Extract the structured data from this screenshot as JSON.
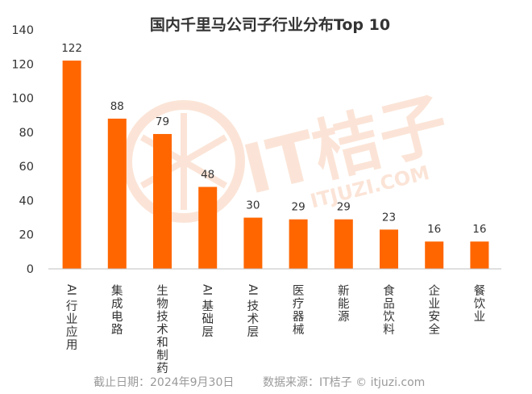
{
  "chart_data": {
    "type": "bar",
    "title": "国内千里马公司子行业分布Top 10",
    "categories": [
      "AI行业应用",
      "集成电路",
      "生物技术和制药",
      "AI基础层",
      "AI技术层",
      "医疗器械",
      "新能源",
      "食品饮料",
      "企业安全",
      "餐饮业"
    ],
    "values": [
      122,
      88,
      79,
      48,
      30,
      29,
      29,
      23,
      16,
      16
    ],
    "data_labels": [
      "122",
      "88",
      "79",
      "48",
      "30",
      "29",
      "29",
      "23",
      "16",
      "16"
    ],
    "ylim": [
      0,
      140
    ],
    "yticks": [
      "0",
      "20",
      "40",
      "60",
      "80",
      "100",
      "120",
      "140"
    ],
    "bar_color": "#ff6600",
    "axis_color": "#bfbfbf",
    "grid": false,
    "legend": "none"
  },
  "footer": {
    "date_text": "截止日期：2024年9月30日",
    "source_text": "数据来源：IT桔子 © itjuzi.com"
  },
  "watermark": {
    "brand": "IT桔子",
    "domain": "ITJUZI.COM",
    "color": "#fbe2d3",
    "icon": "orange-slice-icon"
  }
}
